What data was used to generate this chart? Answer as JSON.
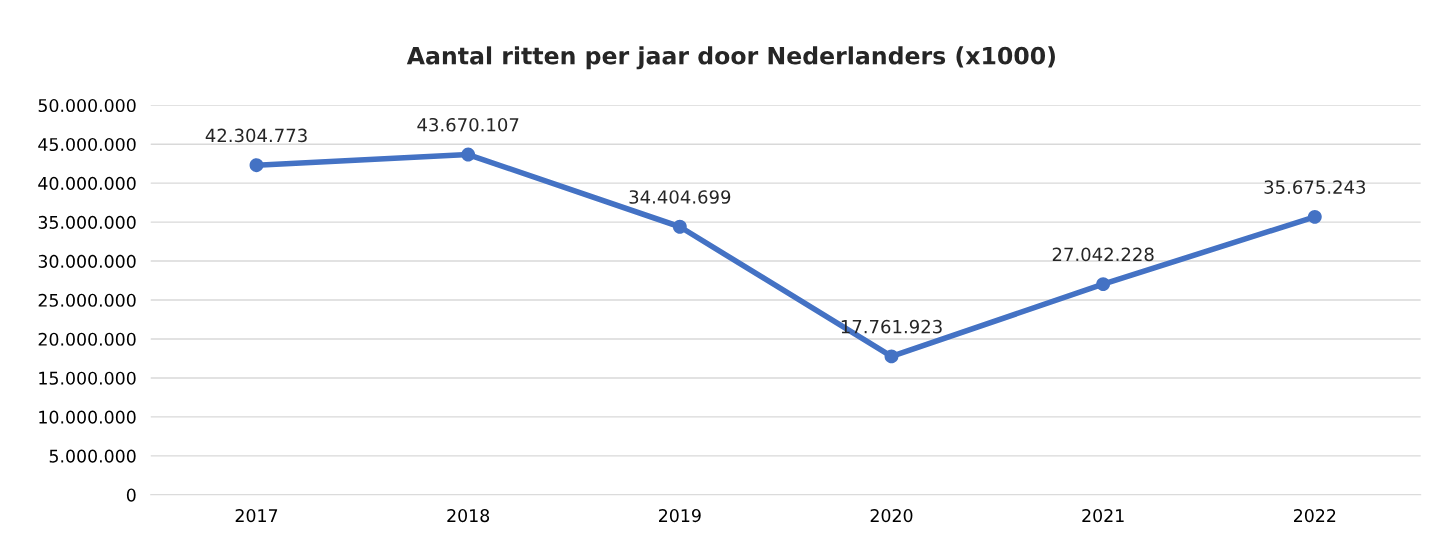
{
  "chart_data": {
    "type": "line",
    "title": "Aantal ritten per jaar door Nederlanders (x1000)",
    "categories": [
      "2017",
      "2018",
      "2019",
      "2020",
      "2021",
      "2022"
    ],
    "series": [
      {
        "color": "#4472c4",
        "values": [
          42304773,
          43670107,
          34404699,
          17761923,
          27042228,
          35675243
        ],
        "value_labels": [
          "42.304.773",
          "43.670.107",
          "34.404.699",
          "17.761.923",
          "27.042.228",
          "35.675.243"
        ]
      }
    ],
    "ylim": [
      0,
      50000000
    ],
    "yticks": [
      0,
      {
        "value": 5000000,
        "label": "5.000.000"
      },
      {
        "value": 10000000,
        "label": "10.000.000"
      },
      {
        "value": 15000000,
        "label": "15.000.000"
      },
      {
        "value": 20000000,
        "label": "20.000.000"
      },
      {
        "value": 25000000,
        "label": "25.000.000"
      },
      {
        "value": 30000000,
        "label": "30.000.000"
      },
      {
        "value": 35000000,
        "label": "35.000.000"
      },
      {
        "value": 40000000,
        "label": "40.000.000"
      },
      {
        "value": 45000000,
        "label": "45.000.000"
      },
      {
        "value": 50000000,
        "label": "50.000.000"
      }
    ],
    "grid": "y",
    "marker": "circle",
    "line_style": "solid"
  }
}
